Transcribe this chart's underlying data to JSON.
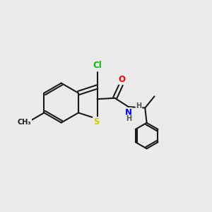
{
  "bg_color": "#ebebeb",
  "bond_color": "#1a1a1a",
  "bond_width": 1.5,
  "atom_colors": {
    "Cl": "#00bb00",
    "S": "#cccc00",
    "O": "#ff0000",
    "N": "#0000ff",
    "H": "#555555",
    "C": "#1a1a1a",
    "CH3": "#1a1a1a"
  },
  "font_size": 8.5,
  "small_font_size": 7.0
}
